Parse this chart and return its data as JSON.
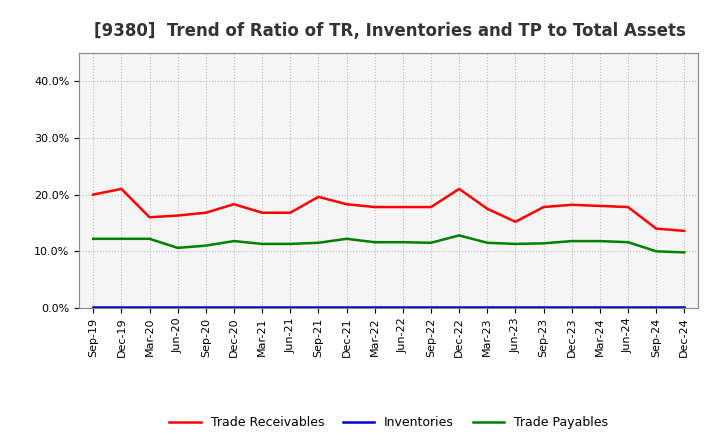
{
  "title": "[9380]  Trend of Ratio of TR, Inventories and TP to Total Assets",
  "x_labels": [
    "Sep-19",
    "Dec-19",
    "Mar-20",
    "Jun-20",
    "Sep-20",
    "Dec-20",
    "Mar-21",
    "Jun-21",
    "Sep-21",
    "Dec-21",
    "Mar-22",
    "Jun-22",
    "Sep-22",
    "Dec-22",
    "Mar-23",
    "Jun-23",
    "Sep-23",
    "Dec-23",
    "Mar-24",
    "Jun-24",
    "Sep-24",
    "Dec-24"
  ],
  "trade_receivables": [
    0.2,
    0.21,
    0.16,
    0.163,
    0.168,
    0.183,
    0.168,
    0.168,
    0.196,
    0.183,
    0.178,
    0.178,
    0.178,
    0.21,
    0.175,
    0.152,
    0.178,
    0.182,
    0.18,
    0.178,
    0.14,
    0.136
  ],
  "inventories": [
    0.002,
    0.002,
    0.002,
    0.002,
    0.002,
    0.002,
    0.002,
    0.002,
    0.002,
    0.002,
    0.002,
    0.002,
    0.002,
    0.002,
    0.002,
    0.002,
    0.002,
    0.002,
    0.002,
    0.002,
    0.002,
    0.002
  ],
  "trade_payables": [
    0.122,
    0.122,
    0.122,
    0.106,
    0.11,
    0.118,
    0.113,
    0.113,
    0.115,
    0.122,
    0.116,
    0.116,
    0.115,
    0.128,
    0.115,
    0.113,
    0.114,
    0.118,
    0.118,
    0.116,
    0.1,
    0.098
  ],
  "tr_color": "#ff0000",
  "inv_color": "#0000cc",
  "tp_color": "#008000",
  "ylim": [
    0.0,
    0.45
  ],
  "yticks": [
    0.0,
    0.1,
    0.2,
    0.3,
    0.4
  ],
  "background_color": "#ffffff",
  "plot_bg_color": "#f5f5f5",
  "grid_color": "#bbbbbb",
  "legend_labels": [
    "Trade Receivables",
    "Inventories",
    "Trade Payables"
  ],
  "title_fontsize": 12,
  "tick_fontsize": 8
}
